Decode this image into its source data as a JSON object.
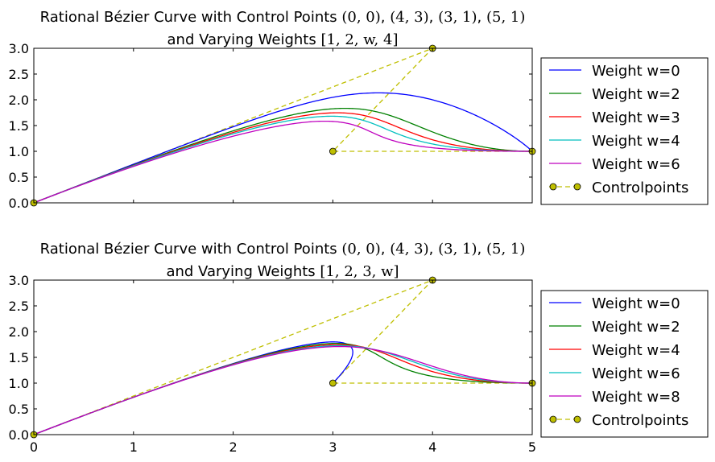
{
  "chart_data": [
    {
      "type": "line",
      "title_prefix": "Rational Bézier Curve with Control Points ",
      "title_points": [
        "(0, 0)",
        "(4, 3)",
        "(3, 1)",
        "(5, 1)"
      ],
      "title_line2_prefix": "and Varying Weights ",
      "title_line2_math": "[1, 2, w, 4]",
      "xlim": [
        0,
        5
      ],
      "ylim": [
        0,
        3
      ],
      "x_ticks": [],
      "y_ticks": [
        "0.0",
        "0.5",
        "1.0",
        "1.5",
        "2.0",
        "2.5",
        "3.0"
      ],
      "legend_position": "outside-right",
      "series": [
        {
          "name": "Weight w=0",
          "color": "#0000ff",
          "weights": [
            1,
            2,
            0,
            4
          ]
        },
        {
          "name": "Weight w=2",
          "color": "#008000",
          "weights": [
            1,
            2,
            2,
            4
          ]
        },
        {
          "name": "Weight w=3",
          "color": "#ff0000",
          "weights": [
            1,
            2,
            3,
            4
          ]
        },
        {
          "name": "Weight w=4",
          "color": "#00bfbf",
          "weights": [
            1,
            2,
            4,
            4
          ]
        },
        {
          "name": "Weight w=6",
          "color": "#bf00bf",
          "weights": [
            1,
            2,
            6,
            4
          ]
        }
      ],
      "controlpoints": {
        "name": "Controlpoints",
        "color": "#bfbf00",
        "x": [
          0,
          4,
          3,
          5
        ],
        "y": [
          0,
          3,
          1,
          1
        ]
      }
    },
    {
      "type": "line",
      "title_prefix": "Rational Bézier Curve with Control Points ",
      "title_points": [
        "(0, 0)",
        "(4, 3)",
        "(3, 1)",
        "(5, 1)"
      ],
      "title_line2_prefix": "and Varying Weights ",
      "title_line2_math": "[1, 2, 3, w]",
      "xlim": [
        0,
        5
      ],
      "ylim": [
        0,
        3
      ],
      "x_ticks": [
        "0",
        "1",
        "2",
        "3",
        "4",
        "5"
      ],
      "y_ticks": [
        "0.0",
        "0.5",
        "1.0",
        "1.5",
        "2.0",
        "2.5",
        "3.0"
      ],
      "legend_position": "outside-right",
      "series": [
        {
          "name": "Weight w=0",
          "color": "#0000ff",
          "weights": [
            1,
            2,
            3,
            0
          ]
        },
        {
          "name": "Weight w=2",
          "color": "#008000",
          "weights": [
            1,
            2,
            3,
            2
          ]
        },
        {
          "name": "Weight w=4",
          "color": "#ff0000",
          "weights": [
            1,
            2,
            3,
            4
          ]
        },
        {
          "name": "Weight w=6",
          "color": "#00bfbf",
          "weights": [
            1,
            2,
            3,
            6
          ]
        },
        {
          "name": "Weight w=8",
          "color": "#bf00bf",
          "weights": [
            1,
            2,
            3,
            8
          ]
        }
      ],
      "controlpoints": {
        "name": "Controlpoints",
        "color": "#bfbf00",
        "x": [
          0,
          4,
          3,
          5
        ],
        "y": [
          0,
          3,
          1,
          1
        ]
      }
    }
  ]
}
